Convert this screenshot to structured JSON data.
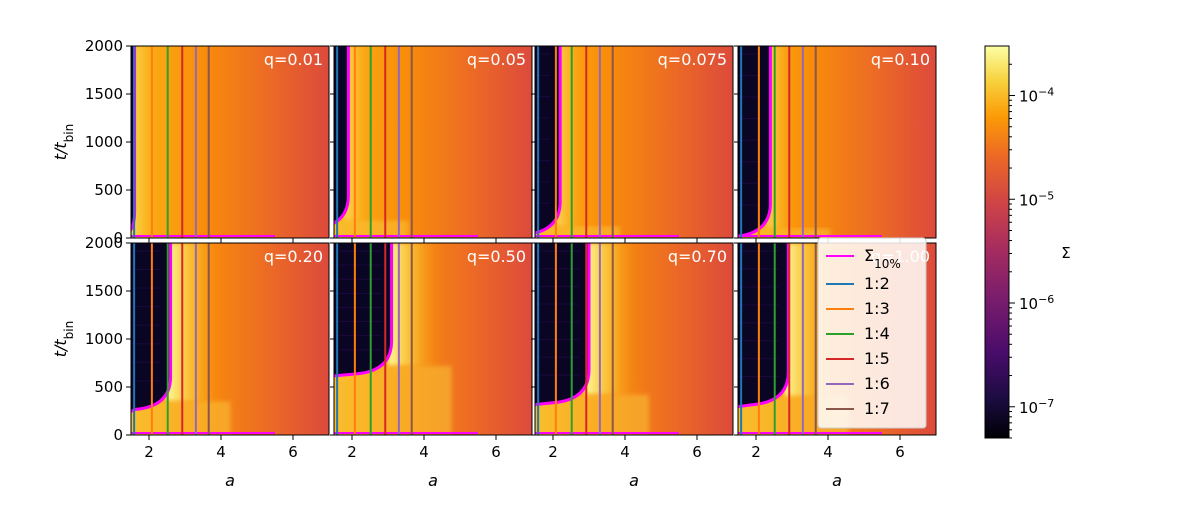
{
  "chart_data": {
    "type": "heatmap",
    "title": "",
    "xlabel": "a",
    "ylabel_main": "t/t",
    "ylabel_sub": "bin",
    "xlim": [
      1.5,
      7.0
    ],
    "ylim": [
      0,
      2000
    ],
    "xticks": [
      2,
      4,
      6
    ],
    "yticks": [
      0,
      500,
      1000,
      1500,
      2000
    ],
    "grid": false,
    "panels": [
      {
        "q_label": "q=0.01",
        "row": 0,
        "col": 0,
        "cavity_edge": 1.6,
        "onset_time": 0
      },
      {
        "q_label": "q=0.05",
        "row": 0,
        "col": 1,
        "cavity_edge": 1.9,
        "onset_time": 180
      },
      {
        "q_label": "q=0.075",
        "row": 0,
        "col": 2,
        "cavity_edge": 2.2,
        "onset_time": 120
      },
      {
        "q_label": "q=0.10",
        "row": 0,
        "col": 3,
        "cavity_edge": 2.4,
        "onset_time": 100
      },
      {
        "q_label": "q=0.20",
        "row": 1,
        "col": 0,
        "cavity_edge": 2.6,
        "onset_time": 350
      },
      {
        "q_label": "q=0.50",
        "row": 1,
        "col": 1,
        "cavity_edge": 3.1,
        "onset_time": 720
      },
      {
        "q_label": "q=0.70",
        "row": 1,
        "col": 2,
        "cavity_edge": 3.0,
        "onset_time": 420
      },
      {
        "q_label": "q=1.00",
        "row": 1,
        "col": 3,
        "cavity_edge": 2.9,
        "onset_time": 400
      }
    ],
    "resonances": [
      {
        "name": "1:2",
        "a": 1.587,
        "color": "#1f77b4"
      },
      {
        "name": "1:3",
        "a": 2.08,
        "color": "#ff7f0e"
      },
      {
        "name": "1:4",
        "a": 2.52,
        "color": "#2ca02c"
      },
      {
        "name": "1:5",
        "a": 2.924,
        "color": "#d62728"
      },
      {
        "name": "1:6",
        "a": 3.302,
        "color": "#9467bd"
      },
      {
        "name": "1:7",
        "a": 3.659,
        "color": "#8c564b"
      }
    ],
    "legend": {
      "placement": "right of bottom-right panel",
      "sigma_entry": {
        "main": "Σ",
        "sub": "10%",
        "color": "#ff00ff"
      },
      "entries": [
        "1:2",
        "1:3",
        "1:4",
        "1:5",
        "1:6",
        "1:7"
      ]
    },
    "colorbar": {
      "label": "Σ",
      "scale": "log",
      "range": [
        5e-08,
        0.0003
      ],
      "colormap": "inferno",
      "ticks": [
        {
          "value": 0.0001,
          "base": "10",
          "exp": "−4"
        },
        {
          "value": 1e-05,
          "base": "10",
          "exp": "−5"
        },
        {
          "value": 1e-06,
          "base": "10",
          "exp": "−6"
        },
        {
          "value": 1e-07,
          "base": "10",
          "exp": "−7"
        }
      ]
    }
  }
}
